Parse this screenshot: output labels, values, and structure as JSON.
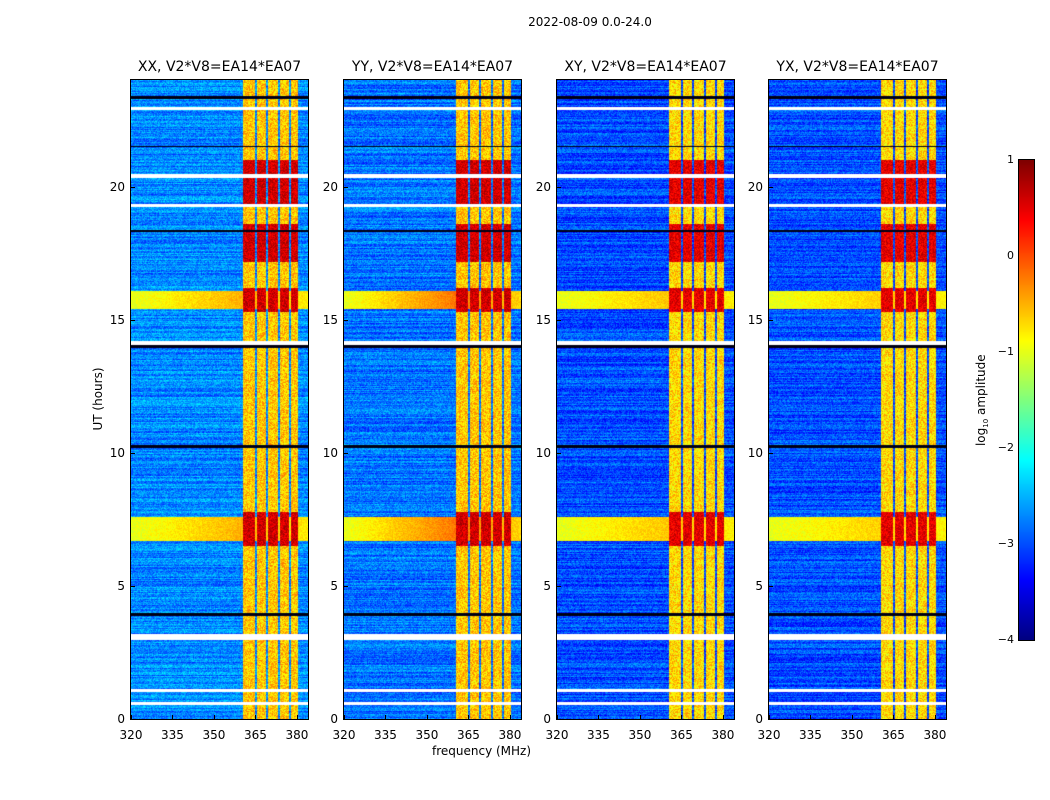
{
  "chart_data": {
    "type": "heatmap",
    "title": "2022-08-09 0.0-24.0",
    "xlabel": "frequency (MHz)",
    "ylabel": "UT (hours)",
    "xlim": [
      320,
      384
    ],
    "ylim": [
      0,
      24
    ],
    "xticks": [
      "320",
      "335",
      "350",
      "365",
      "380"
    ],
    "yticks": [
      "0",
      "5",
      "10",
      "15",
      "20"
    ],
    "colorbar": {
      "label": "log10 amplitude",
      "label_main": "log",
      "label_sub": "10",
      "label_rest": " amplitude",
      "range": [
        -4,
        1
      ],
      "ticks": [
        "1",
        "0",
        "−1",
        "−2",
        "−3",
        "−4"
      ],
      "colormap": "jet"
    },
    "panels": [
      {
        "title": "XX, V2*V8=EA14*EA07",
        "background": -2.7,
        "band_level": -0.6,
        "rfi_level": 0.6,
        "spread": 0.5
      },
      {
        "title": "YY, V2*V8=EA14*EA07",
        "background": -2.8,
        "band_level": -0.6,
        "rfi_level": 0.6,
        "spread": 0.8
      },
      {
        "title": "XY, V2*V8=EA14*EA07",
        "background": -3.0,
        "band_level": -0.7,
        "rfi_level": 0.5,
        "spread": 0.4
      },
      {
        "title": "YX, V2*V8=EA14*EA07",
        "background": -3.0,
        "band_level": -0.7,
        "rfi_level": 0.5,
        "spread": 0.35
      }
    ],
    "rfi_band_mhz": [
      360.4,
      380.3
    ],
    "band_gaps_mhz": [
      364.9,
      369.0,
      373.2,
      377.3
    ],
    "strong_rfi_hours": [
      [
        6.5,
        7.8
      ],
      [
        15.3,
        16.2
      ],
      [
        17.2,
        18.6
      ],
      [
        19.3,
        21.0
      ]
    ],
    "flagged_hours": [
      [
        0.55,
        0.65
      ],
      [
        1.05,
        1.15
      ],
      [
        3.0,
        3.2
      ],
      [
        14.05,
        14.2
      ],
      [
        19.25,
        19.35
      ],
      [
        20.35,
        20.5
      ],
      [
        22.9,
        23.0
      ]
    ],
    "dropout_hours": [
      [
        3.9,
        4.0
      ],
      [
        10.2,
        10.3
      ],
      [
        13.95,
        14.05
      ],
      [
        18.3,
        18.4
      ],
      [
        23.3,
        23.4
      ],
      [
        21.5,
        21.55
      ]
    ]
  }
}
